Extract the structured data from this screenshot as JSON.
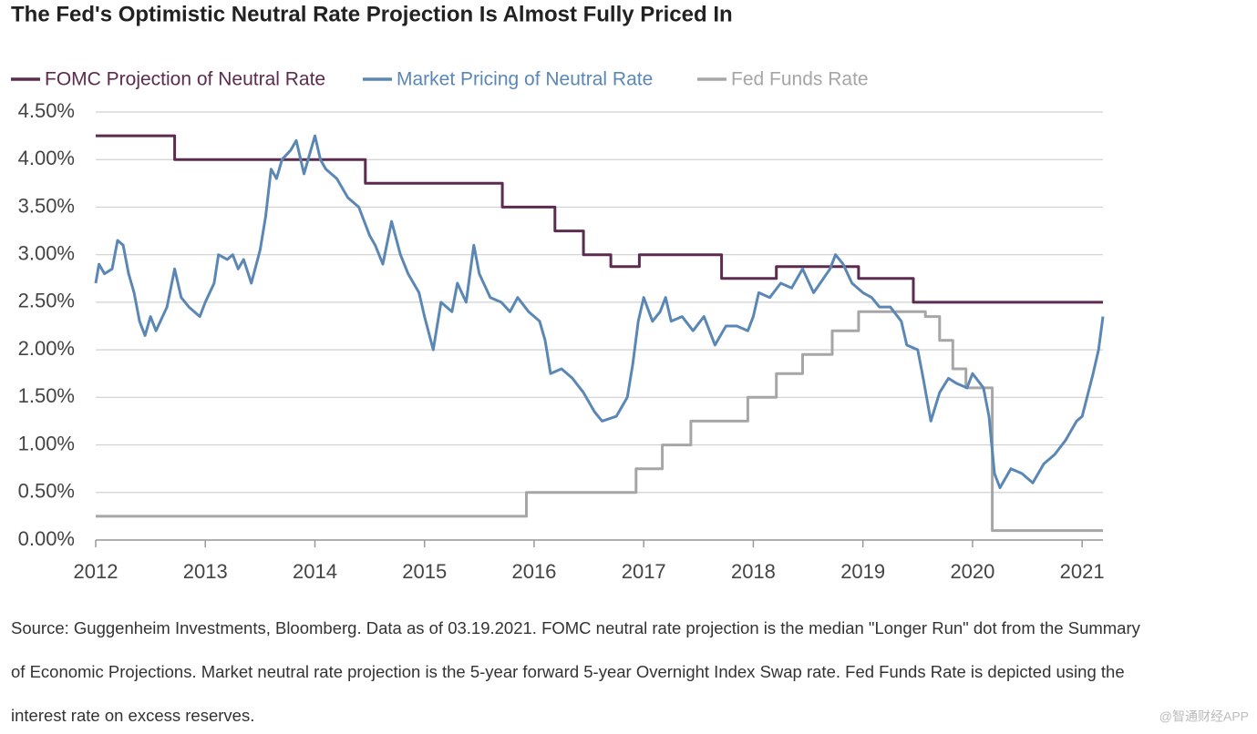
{
  "chart_data": {
    "type": "line",
    "title": "The Fed's Optimistic Neutral Rate Projection Is Almost Fully Priced In",
    "xlim": [
      2012,
      2021.19
    ],
    "xticks": [
      2012,
      2013,
      2014,
      2015,
      2016,
      2017,
      2018,
      2019,
      2020,
      2021
    ],
    "ylim": [
      0,
      4.5
    ],
    "yticks": [
      {
        "value": 0,
        "label": "0.00%"
      },
      {
        "value": 0.5,
        "label": "0.50%"
      },
      {
        "value": 1,
        "label": "1.00%"
      },
      {
        "value": 1.5,
        "label": "1.50%"
      },
      {
        "value": 2,
        "label": "2.00%"
      },
      {
        "value": 2.5,
        "label": "2.50%"
      },
      {
        "value": 3,
        "label": "3.00%"
      },
      {
        "value": 3.5,
        "label": "3.50%"
      },
      {
        "value": 4,
        "label": "4.00%"
      },
      {
        "value": 4.5,
        "label": "4.50%"
      }
    ],
    "grid": true,
    "series": [
      {
        "name": "FOMC Projection of Neutral Rate",
        "color": "#5b2c4f",
        "x": [
          2012,
          2012.72,
          2012.72,
          2014.46,
          2014.46,
          2015.71,
          2015.71,
          2016.19,
          2016.19,
          2016.45,
          2016.45,
          2016.7,
          2016.7,
          2016.96,
          2016.96,
          2017.71,
          2017.71,
          2018.21,
          2018.21,
          2018.96,
          2018.96,
          2019.46,
          2019.46,
          2021.19
        ],
        "values": [
          4.25,
          4.25,
          4,
          4,
          3.75,
          3.75,
          3.5,
          3.5,
          3.25,
          3.25,
          3,
          3,
          2.875,
          2.875,
          3,
          3,
          2.75,
          2.75,
          2.875,
          2.875,
          2.75,
          2.75,
          2.5,
          2.5
        ]
      },
      {
        "name": "Market Pricing of Neutral Rate",
        "color": "#5b87b5",
        "x": [
          2012.0,
          2012.03,
          2012.08,
          2012.15,
          2012.2,
          2012.25,
          2012.3,
          2012.35,
          2012.4,
          2012.45,
          2012.5,
          2012.55,
          2012.65,
          2012.72,
          2012.78,
          2012.85,
          2012.95,
          2013.0,
          2013.08,
          2013.12,
          2013.2,
          2013.25,
          2013.3,
          2013.35,
          2013.42,
          2013.5,
          2013.55,
          2013.6,
          2013.65,
          2013.7,
          2013.78,
          2013.83,
          2013.9,
          2013.95,
          2014.0,
          2014.05,
          2014.1,
          2014.2,
          2014.3,
          2014.4,
          2014.5,
          2014.55,
          2014.62,
          2014.7,
          2014.78,
          2014.85,
          2014.95,
          2015.0,
          2015.08,
          2015.15,
          2015.25,
          2015.3,
          2015.38,
          2015.45,
          2015.5,
          2015.6,
          2015.7,
          2015.78,
          2015.85,
          2015.95,
          2016.05,
          2016.1,
          2016.15,
          2016.25,
          2016.35,
          2016.45,
          2016.55,
          2016.62,
          2016.75,
          2016.85,
          2016.9,
          2016.95,
          2017.0,
          2017.08,
          2017.15,
          2017.2,
          2017.25,
          2017.35,
          2017.45,
          2017.55,
          2017.65,
          2017.75,
          2017.85,
          2017.95,
          2018.0,
          2018.05,
          2018.15,
          2018.25,
          2018.35,
          2018.45,
          2018.55,
          2018.7,
          2018.75,
          2018.82,
          2018.9,
          2019.0,
          2019.08,
          2019.15,
          2019.25,
          2019.35,
          2019.4,
          2019.5,
          2019.55,
          2019.62,
          2019.7,
          2019.78,
          2019.85,
          2019.95,
          2020.0,
          2020.1,
          2020.15,
          2020.2,
          2020.25,
          2020.35,
          2020.45,
          2020.55,
          2020.65,
          2020.75,
          2020.85,
          2020.95,
          2021.0,
          2021.1,
          2021.15,
          2021.19
        ],
        "values": [
          2.7,
          2.9,
          2.8,
          2.85,
          3.15,
          3.1,
          2.8,
          2.6,
          2.3,
          2.15,
          2.35,
          2.2,
          2.45,
          2.85,
          2.55,
          2.45,
          2.35,
          2.5,
          2.7,
          3.0,
          2.95,
          3.0,
          2.85,
          2.95,
          2.7,
          3.05,
          3.4,
          3.9,
          3.8,
          4.0,
          4.1,
          4.2,
          3.85,
          4.05,
          4.25,
          4.0,
          3.9,
          3.8,
          3.6,
          3.5,
          3.2,
          3.1,
          2.9,
          3.35,
          3.0,
          2.8,
          2.6,
          2.35,
          2.0,
          2.5,
          2.4,
          2.7,
          2.5,
          3.1,
          2.8,
          2.55,
          2.5,
          2.4,
          2.55,
          2.4,
          2.3,
          2.1,
          1.75,
          1.8,
          1.7,
          1.55,
          1.35,
          1.25,
          1.3,
          1.5,
          1.85,
          2.3,
          2.55,
          2.3,
          2.4,
          2.55,
          2.3,
          2.35,
          2.2,
          2.35,
          2.05,
          2.25,
          2.25,
          2.2,
          2.35,
          2.6,
          2.55,
          2.7,
          2.65,
          2.85,
          2.6,
          2.85,
          3.0,
          2.9,
          2.7,
          2.6,
          2.55,
          2.45,
          2.45,
          2.3,
          2.05,
          2.0,
          1.7,
          1.25,
          1.55,
          1.7,
          1.65,
          1.6,
          1.75,
          1.6,
          1.3,
          0.7,
          0.55,
          0.75,
          0.7,
          0.6,
          0.8,
          0.9,
          1.05,
          1.25,
          1.3,
          1.75,
          2.0,
          2.35
        ]
      },
      {
        "name": "Fed Funds Rate",
        "color": "#a6a6a6",
        "x": [
          2012,
          2015.93,
          2015.93,
          2016.93,
          2016.93,
          2017.17,
          2017.17,
          2017.43,
          2017.43,
          2017.95,
          2017.95,
          2018.21,
          2018.21,
          2018.45,
          2018.45,
          2018.72,
          2018.72,
          2018.96,
          2018.96,
          2019.57,
          2019.57,
          2019.7,
          2019.7,
          2019.82,
          2019.82,
          2019.94,
          2019.94,
          2020.18,
          2020.18,
          2021.19
        ],
        "values": [
          0.25,
          0.25,
          0.5,
          0.5,
          0.75,
          0.75,
          1,
          1,
          1.25,
          1.25,
          1.5,
          1.5,
          1.75,
          1.75,
          1.95,
          1.95,
          2.2,
          2.2,
          2.4,
          2.4,
          2.35,
          2.35,
          2.1,
          2.1,
          1.8,
          1.8,
          1.6,
          1.6,
          0.1,
          0.1
        ]
      }
    ],
    "source": [
      "Source: Guggenheim Investments, Bloomberg. Data as of 03.19.2021. FOMC neutral rate projection is the median \"Longer Run\" dot from the Summary",
      "of Economic Projections. Market neutral rate projection is the 5-year forward 5-year Overnight Index Swap rate. Fed Funds Rate is depicted using the",
      "interest rate on excess reserves."
    ],
    "watermark": "@智通财经APP"
  }
}
